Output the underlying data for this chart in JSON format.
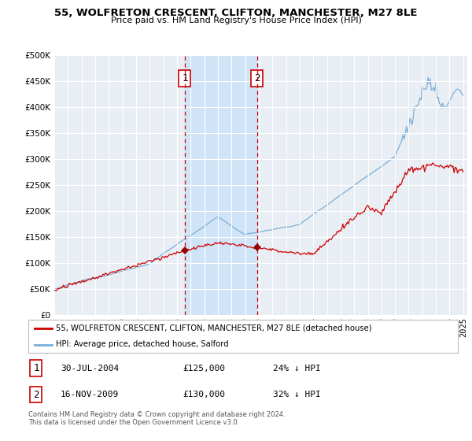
{
  "title": "55, WOLFRETON CRESCENT, CLIFTON, MANCHESTER, M27 8LE",
  "subtitle": "Price paid vs. HM Land Registry's House Price Index (HPI)",
  "legend_label_red": "55, WOLFRETON CRESCENT, CLIFTON, MANCHESTER, M27 8LE (detached house)",
  "legend_label_blue": "HPI: Average price, detached house, Salford",
  "footnote": "Contains HM Land Registry data © Crown copyright and database right 2024.\nThis data is licensed under the Open Government Licence v3.0.",
  "transaction1_date": "30-JUL-2004",
  "transaction1_price": "£125,000",
  "transaction1_note": "24% ↓ HPI",
  "transaction1_year": 2004.58,
  "transaction1_value": 125000,
  "transaction2_date": "16-NOV-2009",
  "transaction2_price": "£130,000",
  "transaction2_note": "32% ↓ HPI",
  "transaction2_year": 2009.88,
  "transaction2_value": 130000,
  "ylim": [
    0,
    500000
  ],
  "yticks": [
    0,
    50000,
    100000,
    150000,
    200000,
    250000,
    300000,
    350000,
    400000,
    450000,
    500000
  ],
  "plot_bg_color": "#e8eef4",
  "grid_color": "#ffffff",
  "red_color": "#cc0000",
  "blue_color": "#7aaed6",
  "vline_color": "#cc0000",
  "shade_color": "#d0e4f7",
  "marker_color": "#990000"
}
